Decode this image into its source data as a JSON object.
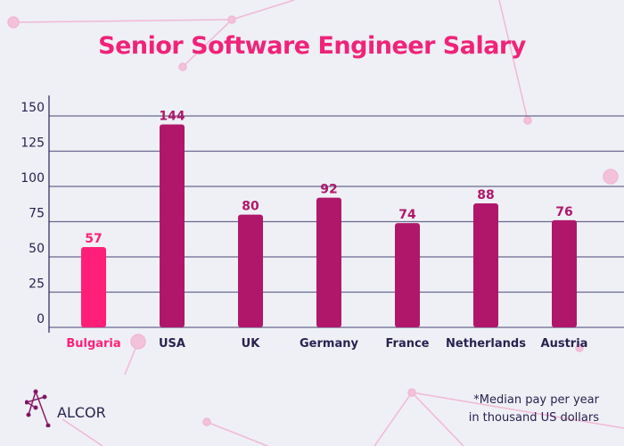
{
  "title": "Senior Software Engineer Salary",
  "brand": "ALCOR",
  "note_line1": "*Median pay per year",
  "note_line2": "in thousand US dollars",
  "colors": {
    "highlight": "#ff1f78",
    "bar": "#b0176a",
    "axis": "#2a2150",
    "grid": "#6a6890",
    "background": "#eef0f5"
  },
  "chart_data": {
    "type": "bar",
    "title": "Senior Software Engineer Salary",
    "categories": [
      "Bulgaria",
      "USA",
      "UK",
      "Germany",
      "France",
      "Netherlands",
      "Austria"
    ],
    "values": [
      57,
      144,
      80,
      92,
      74,
      88,
      76
    ],
    "highlighted": "Bulgaria",
    "yticks": [
      0,
      25,
      50,
      75,
      100,
      125,
      150
    ],
    "ylim": [
      0,
      150
    ],
    "grid": true,
    "xlabel": "",
    "ylabel": ""
  }
}
